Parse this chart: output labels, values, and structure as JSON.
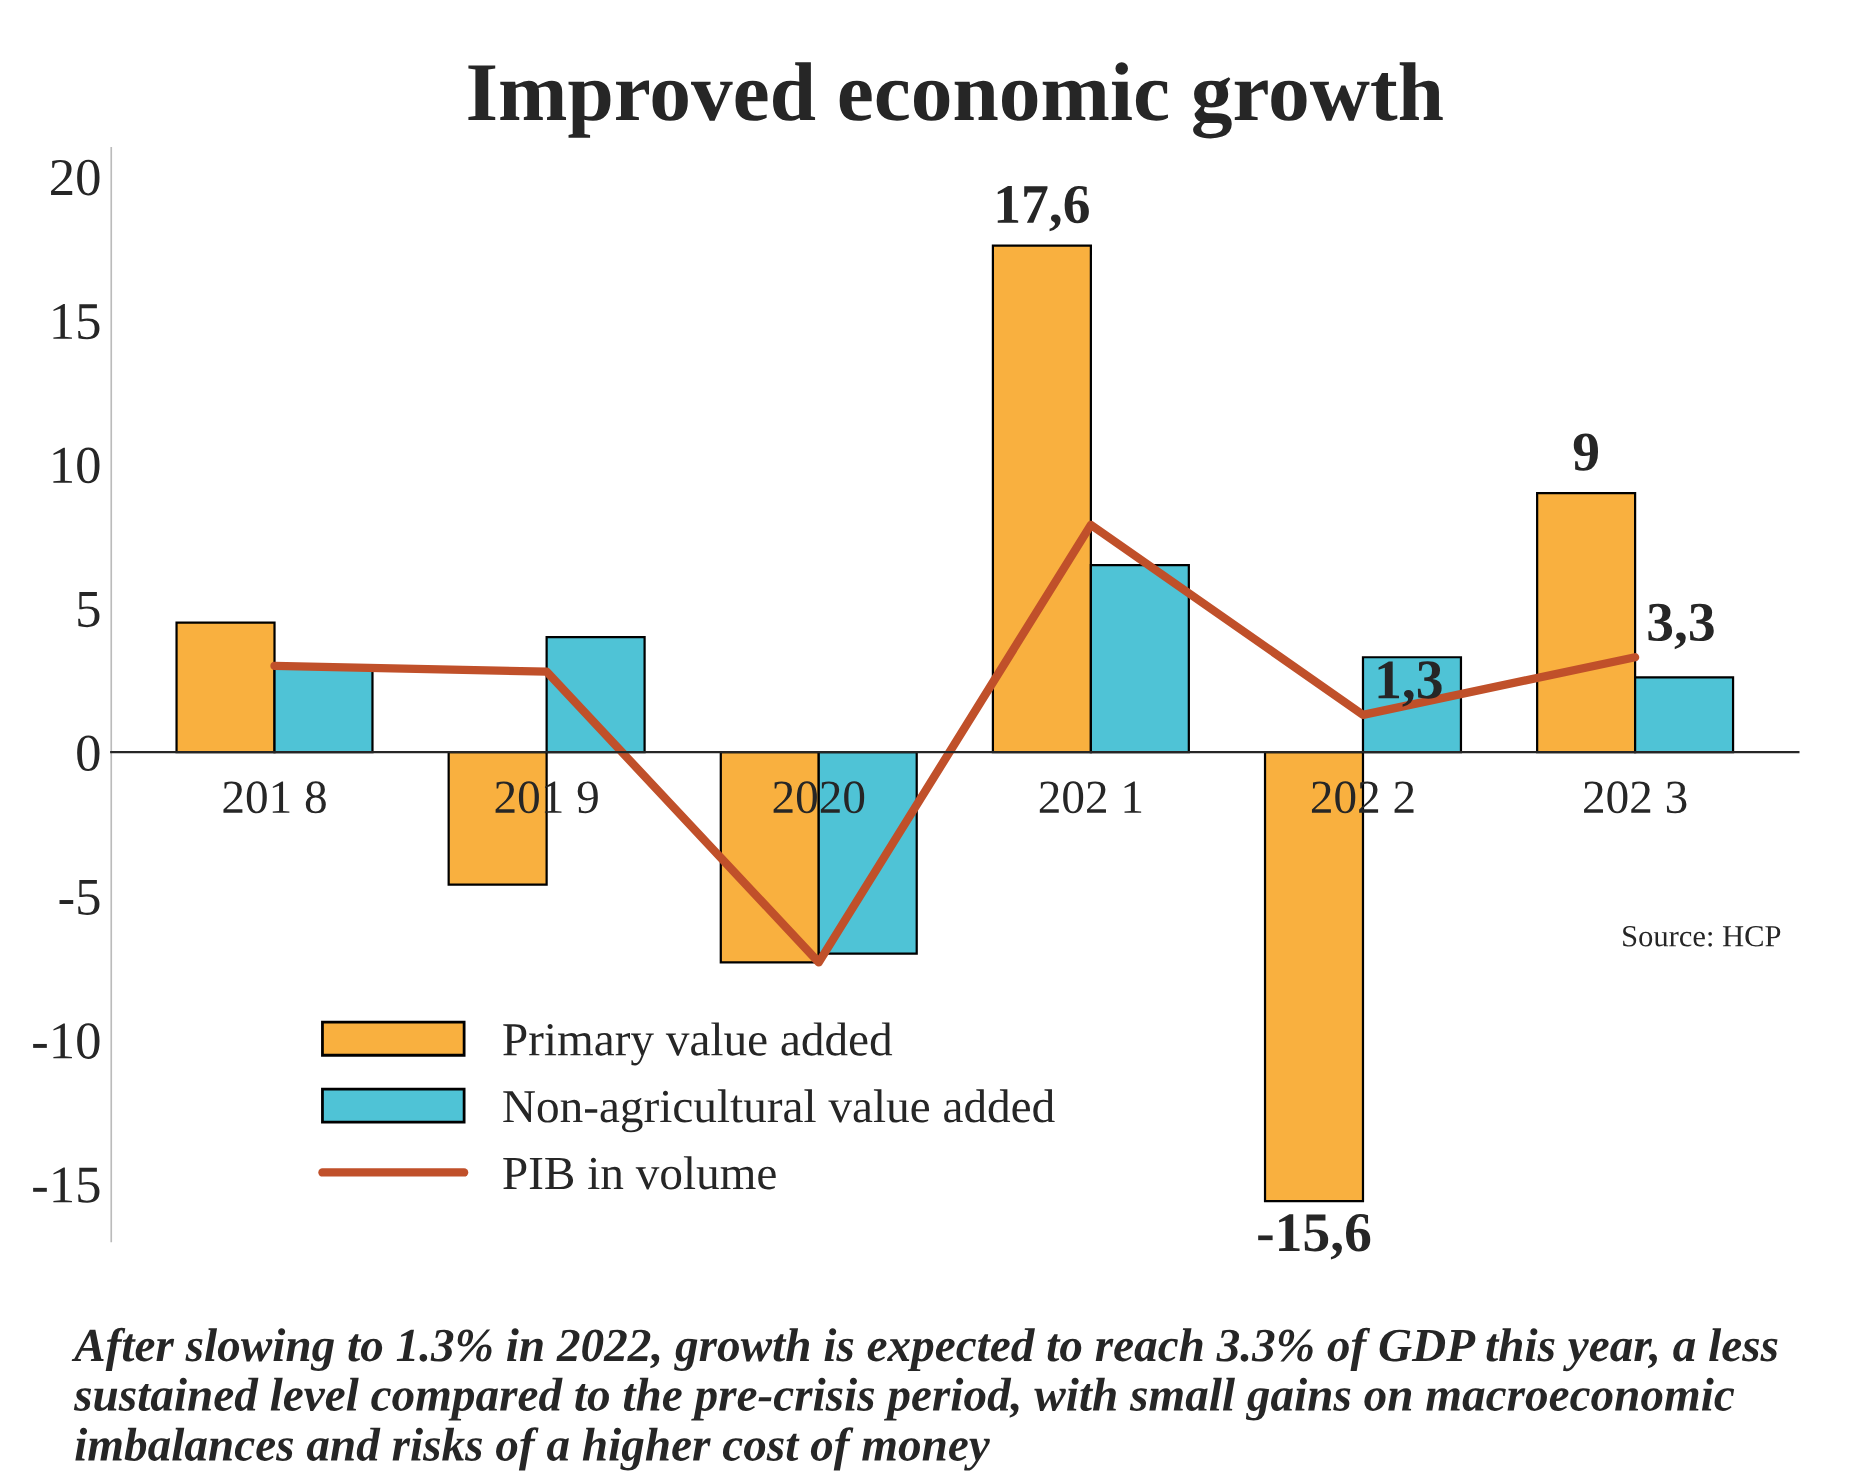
{
  "chart_data": {
    "type": "bar",
    "title": "Improved economic growth",
    "categories": [
      "201 8",
      "201 9",
      "2020",
      "202 1",
      "202 2",
      "202 3"
    ],
    "series": [
      {
        "name": "Primary value added",
        "color": "#f9b03f",
        "values": [
          4.5,
          -4.6,
          -7.3,
          17.6,
          -15.6,
          9
        ],
        "value_labels": [
          null,
          null,
          null,
          "17,6",
          "-15,6",
          "9"
        ]
      },
      {
        "name": "Non-agricultural value added",
        "color": "#4fc3d6",
        "values": [
          2.9,
          4.0,
          -7.0,
          6.5,
          3.3,
          2.6
        ]
      },
      {
        "name": "PIB in volume",
        "type": "line",
        "color": "#c0502a",
        "values": [
          3.0,
          2.8,
          -7.3,
          7.9,
          1.3,
          3.3
        ],
        "value_labels": [
          null,
          null,
          null,
          null,
          "1,3",
          "3,3"
        ]
      }
    ],
    "ylim": [
      -17,
      21
    ],
    "yticks": [
      -15,
      -10,
      -5,
      0,
      5,
      10,
      15,
      20
    ],
    "grid": false,
    "legend": "bottom left",
    "marker": "none",
    "line_style": "solid",
    "annotations": [
      "Source: HCP",
      "After slowing to 1.3% in 2022, growth is expected to reach 3.3% of GDP this year, a less sustained level compared to the pre-crisis period, with small gains on macroeconomic imbalances and risks of a higher cost of money"
    ]
  }
}
